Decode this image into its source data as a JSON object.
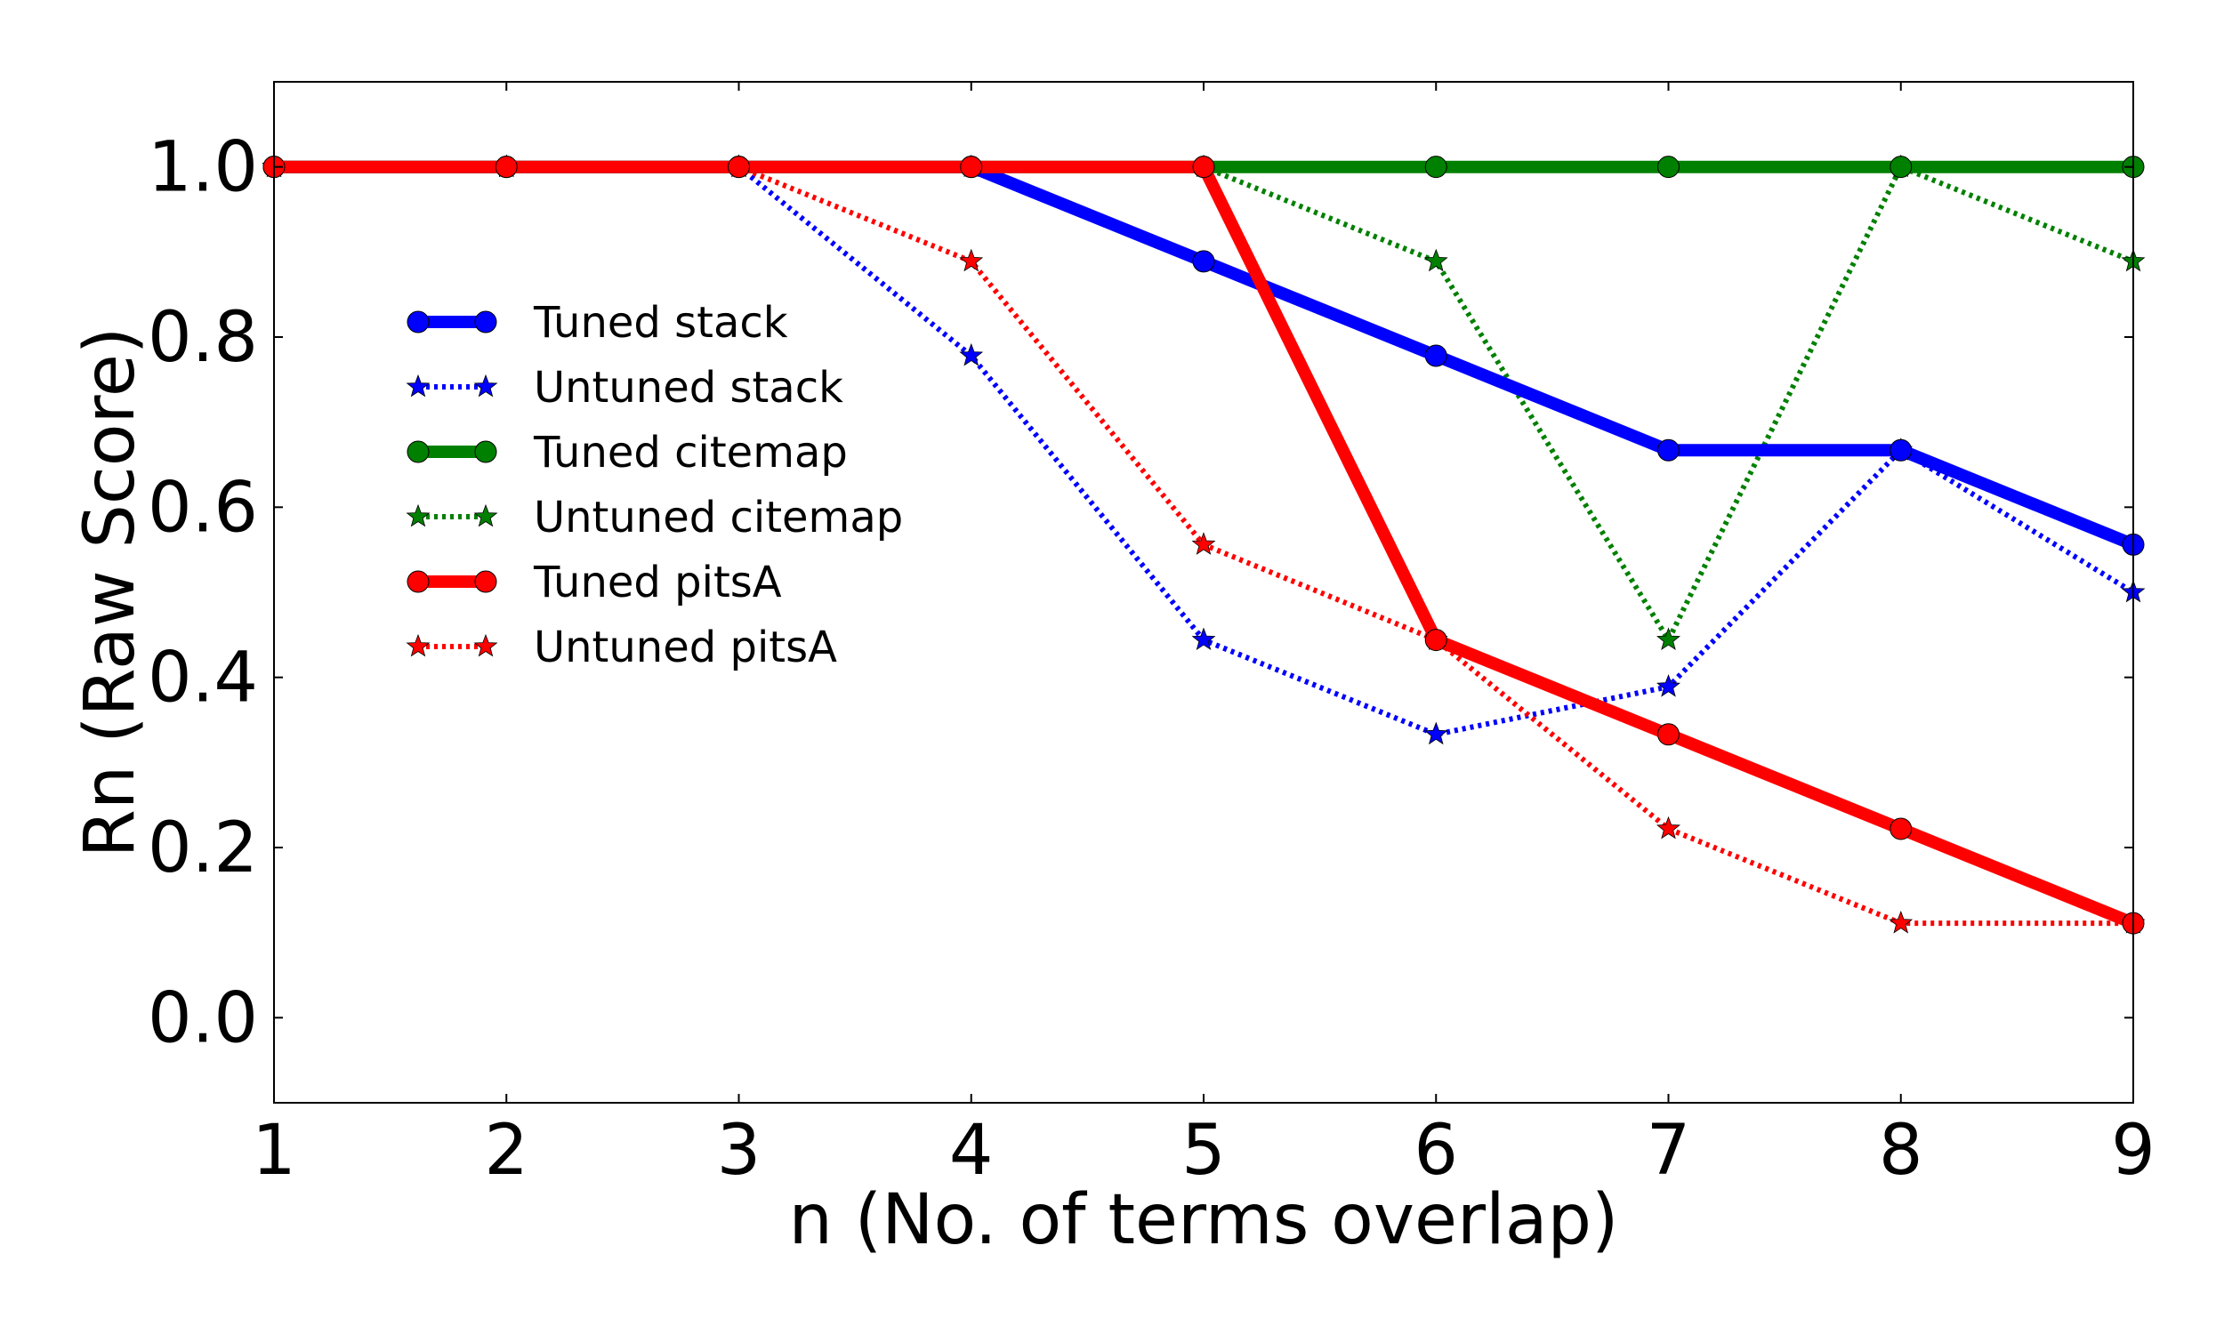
{
  "chart_data": {
    "type": "line",
    "xlabel": "n (No. of terms overlap)",
    "ylabel": "Rn (Raw Score)",
    "x": [
      1,
      2,
      3,
      4,
      5,
      6,
      7,
      8,
      9
    ],
    "xlim": [
      1,
      9
    ],
    "ylim": [
      -0.1,
      1.1
    ],
    "xticks": [
      "1",
      "2",
      "3",
      "4",
      "5",
      "6",
      "7",
      "8",
      "9"
    ],
    "yticks": [
      "0.0",
      "0.2",
      "0.4",
      "0.6",
      "0.8",
      "1.0"
    ],
    "grid": false,
    "legend_position": "center-left",
    "series": [
      {
        "name": "Tuned stack",
        "values": [
          1.0,
          1.0,
          1.0,
          1.0,
          0.889,
          0.778,
          0.667,
          0.667,
          0.556
        ],
        "color": "#0000ff",
        "style": "solid",
        "marker": "circle"
      },
      {
        "name": "Untuned stack",
        "values": [
          1.0,
          1.0,
          1.0,
          0.778,
          0.444,
          0.333,
          0.389,
          0.667,
          0.5
        ],
        "color": "#0000ff",
        "style": "dotted",
        "marker": "star"
      },
      {
        "name": "Tuned citemap",
        "values": [
          1.0,
          1.0,
          1.0,
          1.0,
          1.0,
          1.0,
          1.0,
          1.0,
          1.0
        ],
        "color": "#008000",
        "style": "solid",
        "marker": "circle"
      },
      {
        "name": "Untuned citemap",
        "values": [
          1.0,
          1.0,
          1.0,
          1.0,
          1.0,
          0.889,
          0.444,
          1.0,
          0.889
        ],
        "color": "#008000",
        "style": "dotted",
        "marker": "star"
      },
      {
        "name": "Tuned pitsA",
        "values": [
          1.0,
          1.0,
          1.0,
          1.0,
          1.0,
          0.444,
          0.333,
          0.222,
          0.111
        ],
        "color": "#ff0000",
        "style": "solid",
        "marker": "circle"
      },
      {
        "name": "Untuned pitsA",
        "values": [
          1.0,
          1.0,
          1.0,
          0.889,
          0.556,
          0.444,
          0.222,
          0.111,
          0.111
        ],
        "color": "#ff0000",
        "style": "dotted",
        "marker": "star"
      }
    ]
  }
}
